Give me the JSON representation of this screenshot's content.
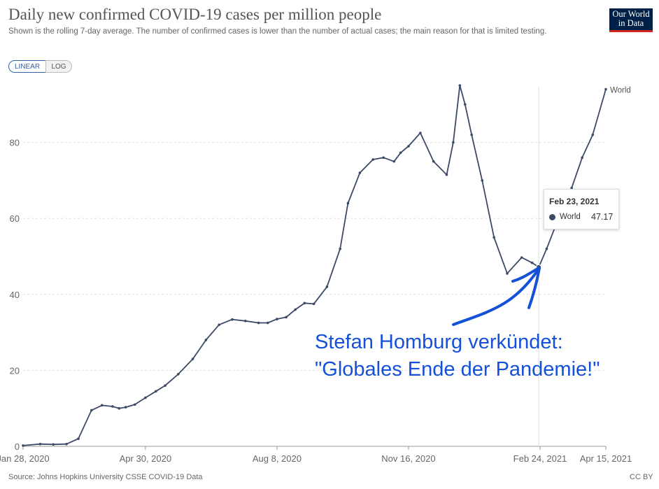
{
  "title": "Daily new confirmed COVID-19 cases per million people",
  "subtitle": "Shown is the rolling 7-day average. The number of confirmed cases is lower than the number of actual cases; the main reason for that is limited testing.",
  "logo": {
    "line1": "Our World",
    "line2": "in Data",
    "bg_color": "#002147",
    "accent_color": "#ce261e"
  },
  "scale_toggle": {
    "linear": "LINEAR",
    "log": "LOG",
    "active": "LINEAR"
  },
  "tooltip": {
    "date": "Feb 23, 2021",
    "series": "World",
    "value": "47.17"
  },
  "annotation": {
    "line1": "Stefan Homburg verkündet:",
    "line2": "\"Globales Ende der Pandemie!\"",
    "color": "#1550d8"
  },
  "source": "Source: Johns Hopkins University CSSE COVID-19 Data",
  "license": "CC BY",
  "chart_data": {
    "type": "line",
    "title": "Daily new confirmed COVID-19 cases per million people",
    "y_ticks": [
      0,
      20,
      40,
      60,
      80
    ],
    "x_ticks": [
      "Jan 28, 2020",
      "Apr 30, 2020",
      "Aug 8, 2020",
      "Nov 16, 2020",
      "Feb 24, 2021",
      "Apr 15, 2021"
    ],
    "ylim": [
      0,
      95
    ],
    "grid": "horizontal dashed",
    "line_color": "#3c4a66",
    "series": [
      {
        "name": "World",
        "x": [
          "2020-01-28",
          "2020-02-10",
          "2020-02-20",
          "2020-03-01",
          "2020-03-10",
          "2020-03-20",
          "2020-03-28",
          "2020-04-05",
          "2020-04-10",
          "2020-04-15",
          "2020-04-22",
          "2020-04-30",
          "2020-05-08",
          "2020-05-15",
          "2020-05-25",
          "2020-06-05",
          "2020-06-15",
          "2020-06-25",
          "2020-07-05",
          "2020-07-15",
          "2020-07-25",
          "2020-08-01",
          "2020-08-08",
          "2020-08-15",
          "2020-08-22",
          "2020-08-29",
          "2020-09-05",
          "2020-09-15",
          "2020-09-25",
          "2020-10-01",
          "2020-10-10",
          "2020-10-20",
          "2020-10-28",
          "2020-11-05",
          "2020-11-10",
          "2020-11-16",
          "2020-11-25",
          "2020-12-05",
          "2020-12-15",
          "2020-12-20",
          "2020-12-25",
          "2020-12-29",
          "2021-01-03",
          "2021-01-11",
          "2021-01-20",
          "2021-01-30",
          "2021-02-10",
          "2021-02-18",
          "2021-02-23",
          "2021-03-01",
          "2021-03-10",
          "2021-03-20",
          "2021-03-28",
          "2021-04-05",
          "2021-04-15"
        ],
        "y": [
          0.2,
          0.6,
          0.5,
          0.6,
          2,
          9.5,
          10.8,
          10.5,
          10,
          10.3,
          11,
          12.8,
          14.5,
          16,
          19,
          23,
          28,
          32,
          33.4,
          33,
          32.5,
          32.5,
          33.5,
          34,
          36,
          37.7,
          37.5,
          42,
          52,
          64,
          72,
          75.5,
          76,
          75,
          77.3,
          79,
          82.5,
          75,
          71.5,
          80,
          95,
          90,
          82,
          70,
          55,
          45.5,
          49.7,
          48.3,
          47.17,
          52,
          60,
          68,
          76,
          82,
          94
        ]
      }
    ]
  }
}
